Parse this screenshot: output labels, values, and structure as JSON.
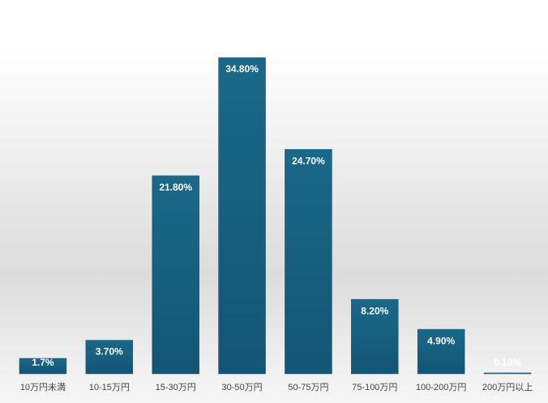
{
  "chart_data": {
    "type": "bar",
    "categories": [
      "10万円未満",
      "10-15万円",
      "15-30万円",
      "30-50万円",
      "50-75万円",
      "75-100万円",
      "100-200万円",
      "200万円以上"
    ],
    "values": [
      1.7,
      3.7,
      21.8,
      34.8,
      24.7,
      8.2,
      4.9,
      0.1
    ],
    "value_labels": [
      "1.7%",
      "3.70%",
      "21.80%",
      "34.80%",
      "24.70%",
      "8.20%",
      "4.90%",
      "0.10%"
    ],
    "color": "#175f80"
  }
}
